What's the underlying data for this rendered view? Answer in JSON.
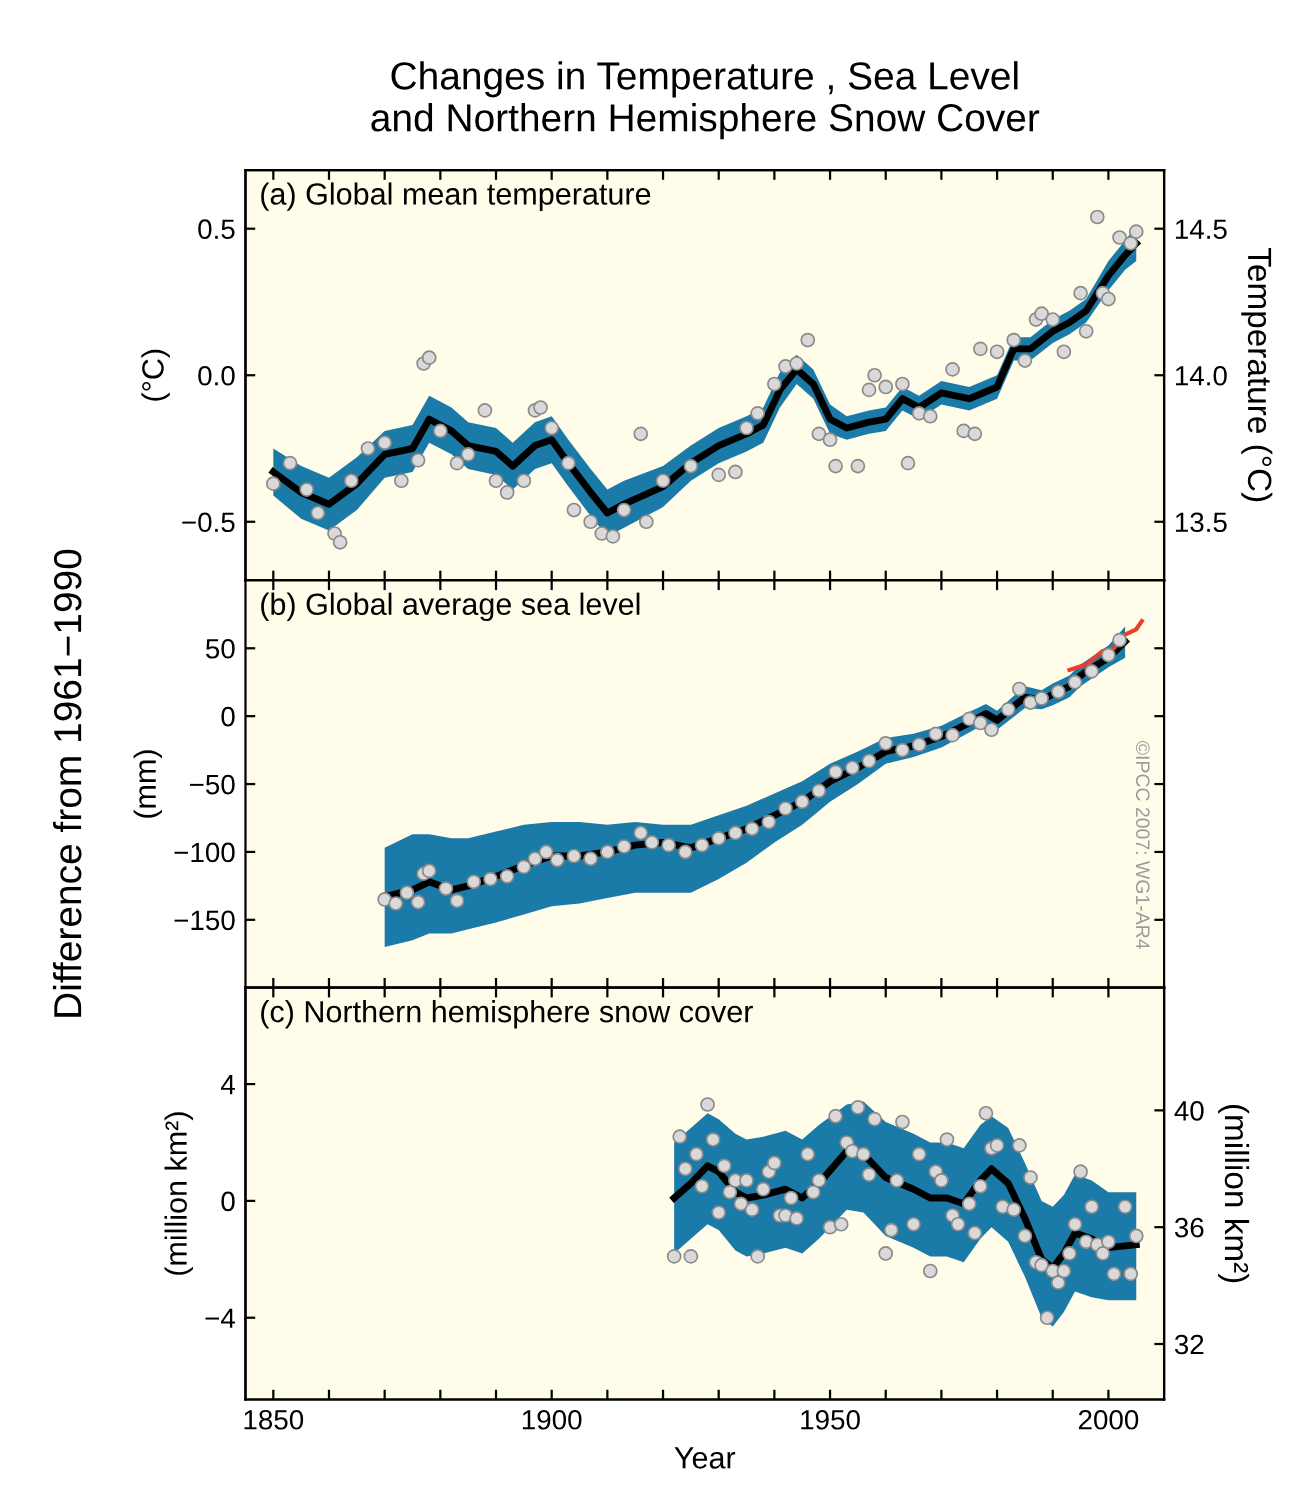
{
  "chart_data": [
    {
      "type": "line",
      "title": "Changes in Temperature , Sea Level\nand Northern Hemisphere Snow Cover",
      "subtitle": "(a) Global mean temperature",
      "ylabel": "(°C)",
      "y2label": "Temperature (°C)",
      "xlim": [
        1845,
        2010
      ],
      "xticks": [
        1850,
        {
          "value": 1860,
          "label": null
        },
        {
          "value": 1870,
          "label": null
        },
        {
          "value": 1880,
          "label": null
        },
        {
          "value": 1890,
          "label": null
        },
        1900,
        {
          "value": 1910,
          "label": null
        },
        {
          "value": 1920,
          "label": null
        },
        {
          "value": 1930,
          "label": null
        },
        {
          "value": 1940,
          "label": null
        },
        1950,
        {
          "value": 1960,
          "label": null
        },
        {
          "value": 1970,
          "label": null
        },
        {
          "value": 1980,
          "label": null
        },
        {
          "value": 1990,
          "label": null
        },
        2000
      ],
      "ylim": [
        -0.7,
        0.7
      ],
      "yticks": [
        {
          "value": 0.5,
          "label": "0.5"
        },
        {
          "value": 0,
          "label": "0.0"
        },
        {
          "value": -0.5,
          "label": "−0.5"
        }
      ],
      "y2lim": [
        13.3,
        14.7
      ],
      "y2ticks": [
        {
          "value": 13.5,
          "label": "13.5"
        },
        {
          "value": 14,
          "label": "14.0"
        },
        {
          "value": 14.5,
          "label": "14.5"
        }
      ],
      "tick_labels": "y",
      "grid": false,
      "legend": false,
      "series": [
        {
          "color": "#000000",
          "x": [
            1850,
            1855,
            1860,
            1865,
            1870,
            1875,
            1878,
            1882,
            1885,
            1890,
            1893,
            1897,
            1900,
            1903,
            1907,
            1910,
            1913,
            1920,
            1925,
            1930,
            1935,
            1938,
            1941,
            1944,
            1947,
            1950,
            1953,
            1957,
            1960,
            1963,
            1966,
            1970,
            1975,
            1980,
            1983,
            1986,
            1990,
            1993,
            1996,
            2000,
            2003,
            2005
          ],
          "values": [
            -0.33,
            -0.4,
            -0.44,
            -0.37,
            -0.27,
            -0.25,
            -0.15,
            -0.19,
            -0.24,
            -0.26,
            -0.31,
            -0.24,
            -0.22,
            -0.3,
            -0.4,
            -0.47,
            -0.44,
            -0.38,
            -0.3,
            -0.24,
            -0.2,
            -0.17,
            -0.05,
            0.02,
            -0.03,
            -0.15,
            -0.18,
            -0.16,
            -0.15,
            -0.08,
            -0.11,
            -0.06,
            -0.08,
            -0.04,
            0.09,
            0.09,
            0.15,
            0.18,
            0.22,
            0.34,
            0.41,
            0.45
          ],
          "lower": [
            -0.41,
            -0.49,
            -0.53,
            -0.46,
            -0.35,
            -0.33,
            -0.23,
            -0.27,
            -0.32,
            -0.34,
            -0.39,
            -0.32,
            -0.3,
            -0.38,
            -0.48,
            -0.55,
            -0.52,
            -0.45,
            -0.36,
            -0.3,
            -0.26,
            -0.23,
            -0.11,
            -0.03,
            -0.08,
            -0.2,
            -0.22,
            -0.2,
            -0.19,
            -0.12,
            -0.15,
            -0.1,
            -0.12,
            -0.08,
            0.05,
            0.05,
            0.11,
            0.14,
            0.18,
            0.29,
            0.36,
            0.39
          ],
          "upper": [
            -0.25,
            -0.31,
            -0.35,
            -0.28,
            -0.19,
            -0.17,
            -0.07,
            -0.11,
            -0.16,
            -0.18,
            -0.23,
            -0.16,
            -0.14,
            -0.22,
            -0.32,
            -0.39,
            -0.36,
            -0.31,
            -0.24,
            -0.18,
            -0.14,
            -0.11,
            0.01,
            0.07,
            0.02,
            -0.1,
            -0.14,
            -0.12,
            -0.11,
            -0.04,
            -0.07,
            -0.02,
            -0.04,
            0.0,
            0.13,
            0.13,
            0.19,
            0.22,
            0.26,
            0.39,
            0.46,
            0.51
          ]
        },
        {
          "type": "scatter",
          "color": "#d9d9d9",
          "x": [
            1850,
            1853,
            1856,
            1858,
            1861,
            1862,
            1864,
            1867,
            1870,
            1873,
            1876,
            1877,
            1878,
            1880,
            1883,
            1885,
            1888,
            1890,
            1892,
            1895,
            1897,
            1898,
            1900,
            1903,
            1904,
            1907,
            1909,
            1911,
            1913,
            1916,
            1917,
            1920,
            1925,
            1930,
            1933,
            1935,
            1937,
            1940,
            1942,
            1944,
            1946,
            1948,
            1950,
            1951,
            1955,
            1957,
            1958,
            1960,
            1963,
            1964,
            1966,
            1968,
            1972,
            1974,
            1976,
            1977,
            1980,
            1983,
            1985,
            1987,
            1988,
            1990,
            1992,
            1995,
            1996,
            1998,
            1999,
            2000,
            2002,
            2004,
            2005
          ],
          "values": [
            -0.37,
            -0.3,
            -0.39,
            -0.47,
            -0.54,
            -0.57,
            -0.36,
            -0.25,
            -0.23,
            -0.36,
            -0.29,
            0.04,
            0.06,
            -0.19,
            -0.3,
            -0.27,
            -0.12,
            -0.36,
            -0.4,
            -0.36,
            -0.12,
            -0.11,
            -0.18,
            -0.3,
            -0.46,
            -0.5,
            -0.54,
            -0.55,
            -0.46,
            -0.2,
            -0.5,
            -0.36,
            -0.31,
            -0.34,
            -0.33,
            -0.18,
            -0.13,
            -0.03,
            0.03,
            0.04,
            0.12,
            -0.2,
            -0.22,
            -0.31,
            -0.31,
            -0.05,
            0.0,
            -0.04,
            -0.03,
            -0.3,
            -0.13,
            -0.14,
            0.02,
            -0.19,
            -0.2,
            0.09,
            0.08,
            0.12,
            0.05,
            0.19,
            0.21,
            0.19,
            0.08,
            0.28,
            0.15,
            0.54,
            0.28,
            0.26,
            0.47,
            0.45,
            0.49
          ]
        }
      ]
    },
    {
      "type": "line",
      "subtitle": "(b) Global average sea level",
      "ylabel": "(mm)",
      "annotations": [
        "Difference from 1961−1990",
        "©IPCC 2007: WG1-AR4"
      ],
      "xlim": [
        1845,
        2010
      ],
      "xticks": [
        1850,
        {
          "value": 1860,
          "label": null
        },
        {
          "value": 1870,
          "label": null
        },
        {
          "value": 1880,
          "label": null
        },
        {
          "value": 1890,
          "label": null
        },
        1900,
        {
          "value": 1910,
          "label": null
        },
        {
          "value": 1920,
          "label": null
        },
        {
          "value": 1930,
          "label": null
        },
        {
          "value": 1940,
          "label": null
        },
        1950,
        {
          "value": 1960,
          "label": null
        },
        {
          "value": 1970,
          "label": null
        },
        {
          "value": 1980,
          "label": null
        },
        {
          "value": 1990,
          "label": null
        },
        2000
      ],
      "ylim": [
        -200,
        100
      ],
      "yticks": [
        {
          "value": 50,
          "label": "50"
        },
        {
          "value": 0,
          "label": "0"
        },
        {
          "value": -50,
          "label": "−50"
        },
        {
          "value": -100,
          "label": "−100"
        },
        {
          "value": -150,
          "label": "−150"
        }
      ],
      "tick_labels": "y",
      "grid": false,
      "legend": false,
      "series": [
        {
          "color": "#000000",
          "x": [
            1870,
            1875,
            1878,
            1882,
            1885,
            1890,
            1895,
            1900,
            1905,
            1910,
            1915,
            1920,
            1925,
            1930,
            1935,
            1940,
            1945,
            1950,
            1955,
            1960,
            1965,
            1970,
            1975,
            1978,
            1980,
            1985,
            1988,
            1990,
            1993,
            1995,
            2000,
            2003
          ],
          "values": [
            -133,
            -128,
            -122,
            -128,
            -125,
            -118,
            -110,
            -103,
            -103,
            -100,
            -95,
            -93,
            -97,
            -90,
            -83,
            -73,
            -63,
            -48,
            -38,
            -26,
            -22,
            -15,
            -5,
            2,
            -3,
            14,
            12,
            16,
            22,
            30,
            43,
            55
          ],
          "lower": [
            -170,
            -165,
            -160,
            -160,
            -157,
            -152,
            -146,
            -140,
            -138,
            -134,
            -130,
            -130,
            -130,
            -120,
            -108,
            -93,
            -80,
            -63,
            -50,
            -35,
            -30,
            -23,
            -12,
            -5,
            -10,
            6,
            5,
            8,
            14,
            22,
            36,
            43
          ],
          "upper": [
            -97,
            -87,
            -87,
            -90,
            -90,
            -85,
            -80,
            -78,
            -78,
            -80,
            -78,
            -80,
            -80,
            -73,
            -66,
            -57,
            -48,
            -35,
            -26,
            -16,
            -13,
            -7,
            3,
            9,
            4,
            22,
            19,
            24,
            30,
            38,
            52,
            66
          ]
        },
        {
          "type": "scatter",
          "color": "#d9d9d9",
          "x": [
            1870,
            1872,
            1874,
            1876,
            1877,
            1878,
            1881,
            1883,
            1886,
            1889,
            1892,
            1895,
            1897,
            1899,
            1901,
            1904,
            1907,
            1910,
            1913,
            1916,
            1918,
            1921,
            1924,
            1927,
            1930,
            1933,
            1936,
            1939,
            1942,
            1945,
            1948,
            1951,
            1954,
            1957,
            1960,
            1963,
            1966,
            1969,
            1972,
            1975,
            1977,
            1979,
            1982,
            1984,
            1986,
            1988,
            1991,
            1994,
            1997,
            2000,
            2002
          ],
          "values": [
            -135,
            -138,
            -130,
            -137,
            -116,
            -114,
            -127,
            -136,
            -122,
            -120,
            -118,
            -111,
            -105,
            -100,
            -106,
            -103,
            -105,
            -100,
            -96,
            -86,
            -93,
            -95,
            -100,
            -95,
            -90,
            -86,
            -83,
            -78,
            -68,
            -63,
            -55,
            -41,
            -38,
            -33,
            -20,
            -25,
            -21,
            -13,
            -14,
            -2,
            -5,
            -10,
            5,
            20,
            10,
            13,
            18,
            25,
            33,
            45,
            56
          ]
        },
        {
          "color": "#e8402a",
          "x": [
            1993,
            1996,
            1999,
            2001,
            2003,
            2005,
            2006
          ],
          "values": [
            34,
            38,
            48,
            50,
            60,
            64,
            70
          ]
        }
      ]
    },
    {
      "type": "line",
      "subtitle": "(c) Northern hemisphere snow cover",
      "xlabel": "Year",
      "ylabel": "(million km²)",
      "y2label": "(million km²)",
      "xlim": [
        1845,
        2010
      ],
      "xticks": [
        1850,
        {
          "value": 1860,
          "label": null
        },
        {
          "value": 1870,
          "label": null
        },
        {
          "value": 1880,
          "label": null
        },
        {
          "value": 1890,
          "label": null
        },
        1900,
        {
          "value": 1910,
          "label": null
        },
        {
          "value": 1920,
          "label": null
        },
        {
          "value": 1930,
          "label": null
        },
        {
          "value": 1940,
          "label": null
        },
        1950,
        {
          "value": 1960,
          "label": null
        },
        {
          "value": 1970,
          "label": null
        },
        {
          "value": 1980,
          "label": null
        },
        {
          "value": 1990,
          "label": null
        },
        2000
      ],
      "ylim": [
        -6.8,
        7.3
      ],
      "yticks": [
        {
          "value": 4,
          "label": "4"
        },
        {
          "value": 0,
          "label": "0"
        },
        {
          "value": -4,
          "label": "−4"
        }
      ],
      "y2lim": [
        30.1,
        44.2
      ],
      "y2ticks": [
        32,
        36,
        40
      ],
      "grid": false,
      "legend": false,
      "series": [
        {
          "color": "#000000",
          "x": [
            1922,
            1925,
            1928,
            1930,
            1933,
            1935,
            1938,
            1942,
            1945,
            1948,
            1953,
            1956,
            1960,
            1965,
            1968,
            1971,
            1974,
            1977,
            1979,
            1982,
            1985,
            1988,
            1990,
            1992,
            1994,
            1997,
            2000,
            2005
          ],
          "values": [
            0.1,
            0.6,
            1.2,
            1.0,
            0.3,
            0.1,
            0.2,
            0.4,
            0.1,
            0.6,
            1.7,
            1.6,
            0.8,
            0.4,
            0.1,
            0.1,
            -0.1,
            0.7,
            1.1,
            0.6,
            -0.6,
            -2.0,
            -2.3,
            -1.8,
            -1.1,
            -1.3,
            -1.6,
            -1.5
          ],
          "lower": [
            -1.8,
            -1.3,
            -0.8,
            -1.0,
            -1.7,
            -1.9,
            -1.8,
            -1.6,
            -1.8,
            -1.3,
            -0.3,
            -0.4,
            -1.2,
            -1.6,
            -1.9,
            -1.9,
            -2.1,
            -1.3,
            -0.9,
            -1.4,
            -2.6,
            -4.0,
            -4.3,
            -3.8,
            -3.1,
            -3.3,
            -3.4,
            -3.4
          ],
          "upper": [
            2.0,
            2.5,
            3.0,
            2.8,
            2.3,
            2.1,
            2.2,
            2.4,
            2.1,
            2.6,
            3.3,
            3.4,
            2.7,
            2.3,
            2.0,
            2.0,
            1.8,
            2.6,
            2.9,
            2.5,
            1.3,
            0.0,
            -0.2,
            0.2,
            0.9,
            0.7,
            0.3,
            0.3
          ]
        },
        {
          "type": "scatter",
          "color": "#d9d9d9",
          "x": [
            1922,
            1923,
            1924,
            1925,
            1926,
            1927,
            1928,
            1929,
            1930,
            1931,
            1932,
            1933,
            1934,
            1935,
            1936,
            1937,
            1938,
            1939,
            1940,
            1941,
            1942,
            1943,
            1944,
            1946,
            1947,
            1948,
            1950,
            1951,
            1952,
            1953,
            1954,
            1955,
            1956,
            1957,
            1958,
            1960,
            1961,
            1962,
            1963,
            1965,
            1966,
            1968,
            1969,
            1970,
            1971,
            1972,
            1973,
            1975,
            1976,
            1977,
            1978,
            1979,
            1980,
            1981,
            1983,
            1984,
            1985,
            1986,
            1987,
            1988,
            1989,
            1990,
            1991,
            1992,
            1993,
            1994,
            1995,
            1996,
            1997,
            1998,
            1999,
            2000,
            2001,
            2003,
            2004,
            2005
          ],
          "values": [
            -1.9,
            2.2,
            1.1,
            -1.9,
            1.6,
            0.5,
            3.3,
            2.1,
            -0.4,
            1.2,
            0.3,
            0.7,
            -0.1,
            0.7,
            -0.3,
            -1.9,
            0.4,
            1.0,
            1.3,
            -0.5,
            -0.5,
            0.1,
            -0.6,
            1.6,
            0.3,
            0.7,
            -0.9,
            2.9,
            -0.8,
            2.0,
            1.7,
            3.2,
            1.6,
            0.9,
            2.8,
            -1.8,
            -1.0,
            0.7,
            2.7,
            -0.8,
            1.6,
            -2.4,
            1.0,
            0.7,
            2.1,
            -0.5,
            -0.8,
            -0.1,
            -1.1,
            0.5,
            3.0,
            1.8,
            1.9,
            -0.2,
            -0.3,
            1.9,
            -1.2,
            0.8,
            -2.1,
            -2.2,
            -4.0,
            -2.4,
            -2.8,
            -2.4,
            -1.8,
            -0.8,
            1.0,
            -1.4,
            -0.2,
            -1.5,
            -1.8,
            -1.4,
            -2.5,
            -0.2,
            -2.5,
            -1.2
          ]
        }
      ]
    }
  ]
}
